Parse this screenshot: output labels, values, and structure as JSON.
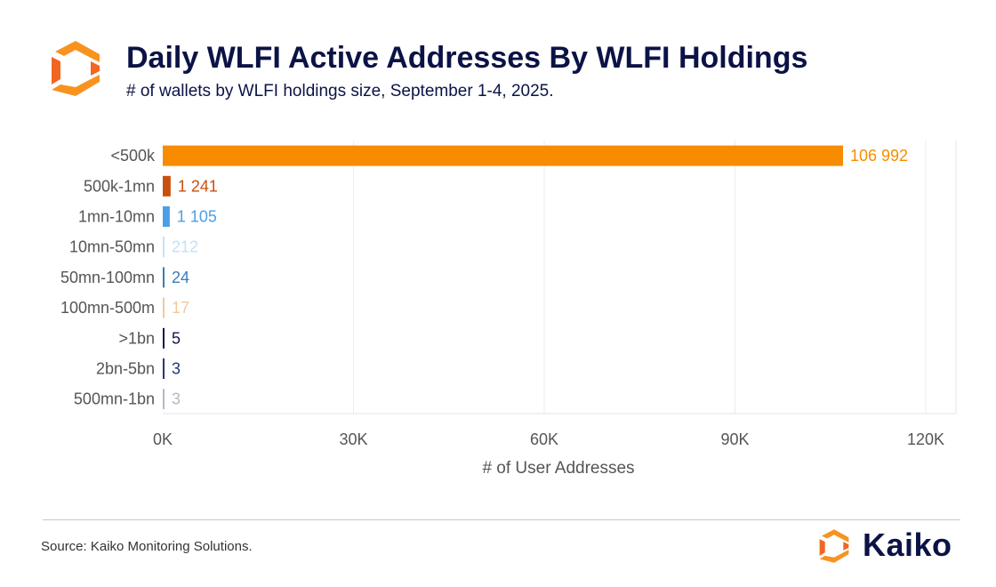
{
  "header": {
    "title": "Daily WLFI Active Addresses By WLFI Holdings",
    "subtitle": "# of wallets by WLFI holdings size, September 1-4, 2025."
  },
  "footer": {
    "source": "Source: Kaiko Monitoring Solutions.",
    "brand": "Kaiko"
  },
  "icons": {
    "header_logo": "kaiko-logo-icon",
    "footer_logo": "kaiko-logo-icon"
  },
  "colors": {
    "title": "#0b1346",
    "logo_orange": "#f7931e",
    "logo_deep": "#f26522"
  },
  "chart_data": {
    "type": "bar",
    "orientation": "horizontal",
    "categories": [
      "<500k",
      "500k-1mn",
      "1mn-10mn",
      "10mn-50mn",
      "50mn-100mn",
      "100mn-500m",
      ">1bn",
      "2bn-5bn",
      "500mn-1bn"
    ],
    "values": [
      106992,
      1241,
      1105,
      212,
      24,
      17,
      5,
      3,
      3
    ],
    "value_labels": [
      "106 992",
      "1 241",
      "1 105",
      "212",
      "24",
      "17",
      "5",
      "3",
      "3"
    ],
    "colors": [
      "#f78c00",
      "#c9500c",
      "#4a9fe8",
      "#c3e2f7",
      "#3d7ab8",
      "#f4c89a",
      "#10164a",
      "#25367a",
      "#b5b9c6"
    ],
    "xlim": [
      0,
      120000
    ],
    "xticks": [
      0,
      30000,
      60000,
      90000,
      120000
    ],
    "xtick_labels": [
      "0K",
      "30K",
      "60K",
      "90K",
      "120K"
    ],
    "xlabel": "# of User Addresses",
    "ylabel": "",
    "grid": true
  }
}
